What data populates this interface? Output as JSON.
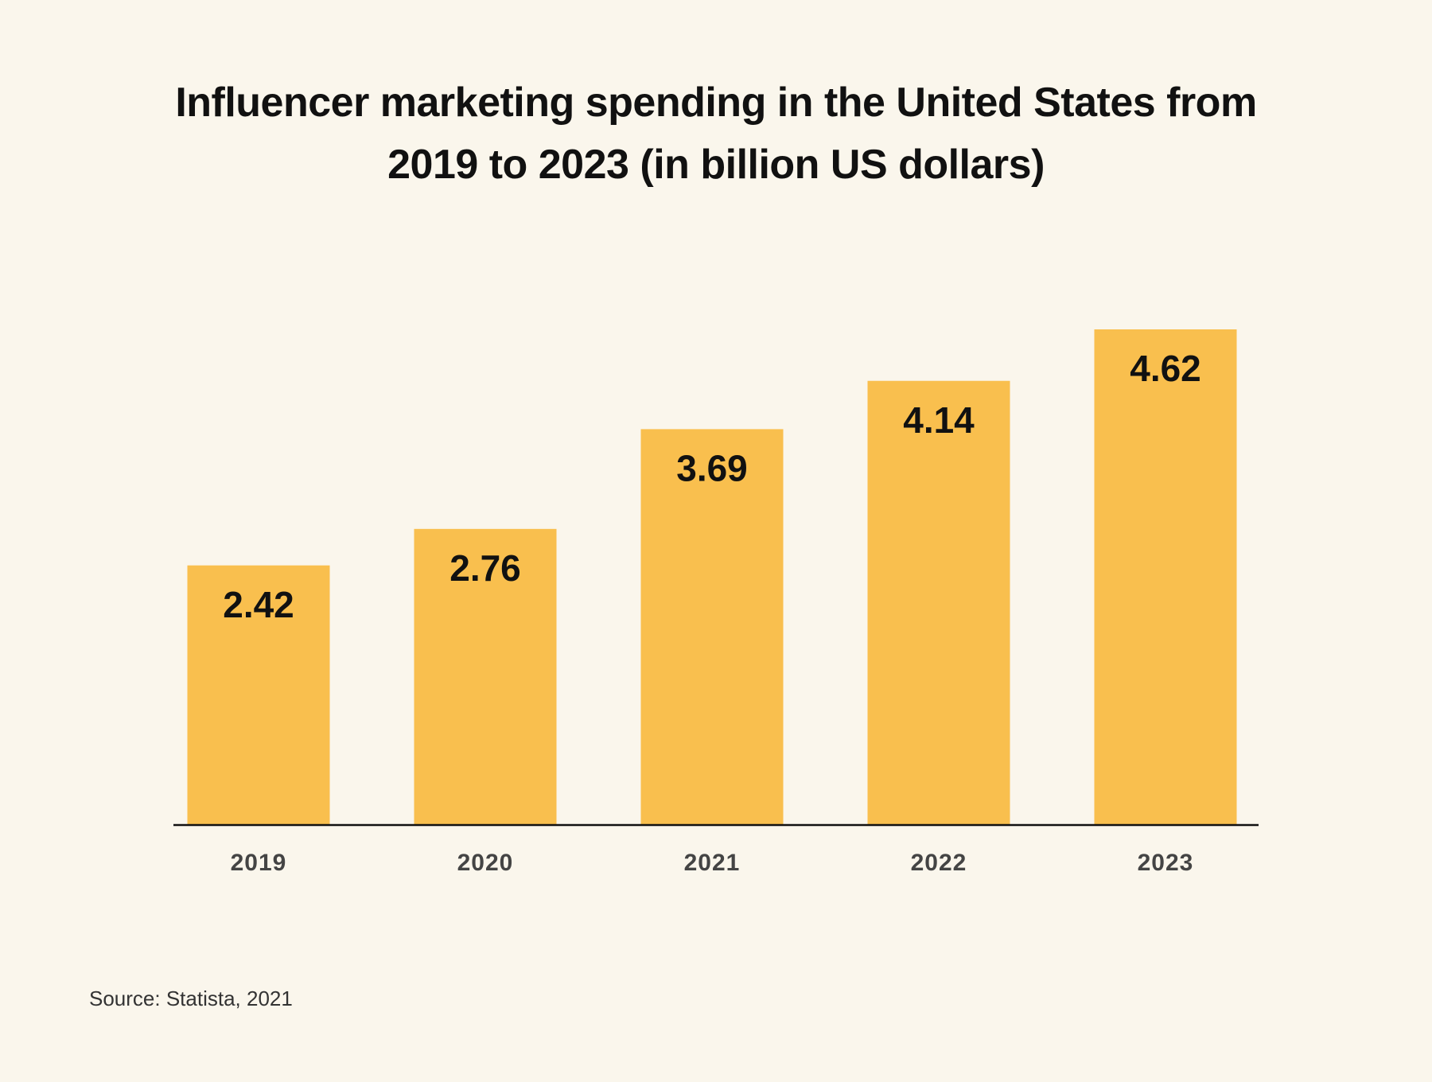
{
  "chart_data": {
    "type": "bar",
    "title": "Influencer marketing spending in the United States from 2019 to 2023 (in billion US dollars)",
    "categories": [
      "2019",
      "2020",
      "2021",
      "2022",
      "2023"
    ],
    "values": [
      2.42,
      2.76,
      3.69,
      4.14,
      4.62
    ],
    "color": "#f9bf4e",
    "source": "Source: Statista, 2021"
  }
}
